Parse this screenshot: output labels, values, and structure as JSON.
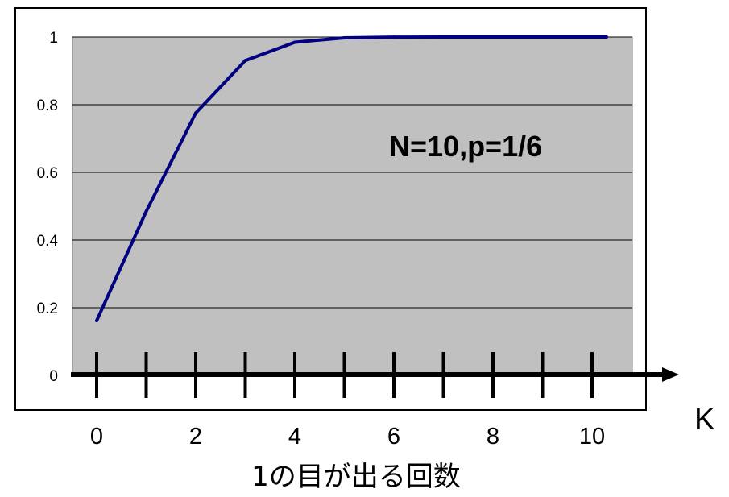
{
  "chart_data": {
    "type": "line",
    "x": [
      0,
      1,
      2,
      3,
      4,
      5,
      6,
      7,
      8,
      9,
      10
    ],
    "series": [
      {
        "values": [
          0.1615,
          0.4845,
          0.7752,
          0.9303,
          0.9845,
          0.9976,
          0.9997,
          1.0,
          1.0,
          1.0,
          1.0
        ],
        "color": "#000080"
      }
    ],
    "annotation": "N=10,p=1/6",
    "xlabel": "1の目が出る回数",
    "x_axis_symbol": "K",
    "ylim": [
      0,
      1
    ],
    "xlim": [
      0,
      10
    ],
    "yticks": [
      "0",
      "0.2",
      "0.4",
      "0.6",
      "0.8",
      "1"
    ],
    "xticks": [
      "0",
      "2",
      "4",
      "6",
      "8",
      "10"
    ],
    "grid": "horizontal",
    "plot_background": "#c0c0c0"
  }
}
